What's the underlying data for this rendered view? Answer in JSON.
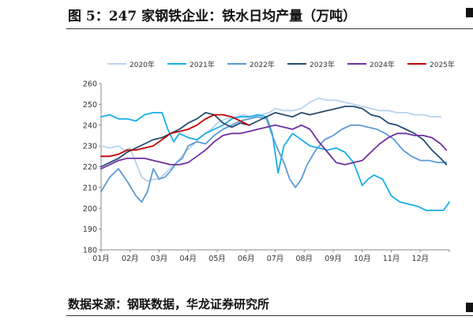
{
  "header": {
    "title": "图 5：247 家钢铁企业：铁水日均产量（万吨）"
  },
  "footer": {
    "source": "数据来源：钢联数据，华龙证券研究所"
  },
  "chart_data": {
    "type": "line",
    "title": "",
    "xlabel": "",
    "ylabel": "",
    "ylim": [
      180,
      260
    ],
    "yticks": [
      180,
      190,
      200,
      210,
      220,
      230,
      240,
      250,
      260
    ],
    "categories": [
      "01月",
      "02月",
      "03月",
      "04月",
      "05月",
      "06月",
      "07月",
      "08月",
      "09月",
      "10月",
      "11月",
      "12月"
    ],
    "grid": false,
    "legend_position": "top",
    "series": [
      {
        "name": "2020年",
        "color": "#b9d3ee",
        "x": [
          1,
          1.3,
          1.6,
          1.8,
          2.0,
          2.2,
          2.4,
          2.6,
          2.8,
          3.0,
          3.3,
          3.6,
          3.9,
          4.2,
          4.5,
          4.8,
          5.0,
          5.3,
          5.6,
          5.9,
          6.2,
          6.5,
          6.8,
          7.0,
          7.3,
          7.6,
          7.9,
          8.2,
          8.5,
          8.8,
          9.1,
          9.4,
          9.7,
          10.0,
          10.3,
          10.6,
          10.9,
          11.2,
          11.5,
          11.8,
          12.1,
          12.4,
          12.7
        ],
        "values": [
          230,
          229,
          230,
          228,
          229,
          222,
          215,
          213,
          214,
          214,
          218,
          222,
          227,
          231,
          235,
          238,
          241,
          243,
          244,
          245,
          244,
          245,
          246,
          248,
          247,
          247,
          248,
          251,
          253,
          252,
          252,
          251,
          250,
          249,
          248,
          247,
          247,
          246,
          246,
          245,
          245,
          244,
          244
        ]
      },
      {
        "name": "2021年",
        "color": "#19aee9",
        "x": [
          1,
          1.3,
          1.6,
          1.9,
          2.2,
          2.5,
          2.8,
          3.1,
          3.3,
          3.5,
          3.7,
          4.0,
          4.3,
          4.6,
          4.9,
          5.2,
          5.5,
          5.8,
          6.1,
          6.4,
          6.7,
          6.9,
          7.1,
          7.3,
          7.6,
          7.9,
          8.2,
          8.5,
          8.8,
          9.1,
          9.4,
          9.7,
          10.0,
          10.2,
          10.4,
          10.7,
          11.0,
          11.3,
          11.6,
          11.9,
          12.2,
          12.5,
          12.8,
          13.0
        ],
        "values": [
          244,
          245,
          243,
          243,
          242,
          245,
          246,
          246,
          238,
          232,
          236,
          234,
          233,
          236,
          238,
          240,
          243,
          244,
          244,
          245,
          244,
          236,
          217,
          230,
          236,
          233,
          230,
          229,
          228,
          229,
          227,
          222,
          211,
          214,
          216,
          214,
          206,
          203,
          202,
          201,
          199,
          199,
          199,
          203
        ]
      },
      {
        "name": "2022年",
        "color": "#5b9bd5",
        "x": [
          1,
          1.3,
          1.6,
          1.9,
          2.2,
          2.4,
          2.6,
          2.8,
          3.0,
          3.2,
          3.4,
          3.6,
          3.8,
          4.0,
          4.3,
          4.6,
          4.9,
          5.2,
          5.5,
          5.8,
          6.1,
          6.4,
          6.7,
          6.9,
          7.1,
          7.3,
          7.5,
          7.7,
          7.9,
          8.1,
          8.4,
          8.7,
          9.0,
          9.3,
          9.6,
          9.9,
          10.2,
          10.5,
          10.8,
          11.1,
          11.4,
          11.7,
          12.0,
          12.3,
          12.6,
          12.9
        ],
        "values": [
          208,
          215,
          219,
          213,
          206,
          203,
          208,
          219,
          214,
          215,
          218,
          222,
          224,
          230,
          232,
          231,
          235,
          238,
          240,
          242,
          243,
          244,
          243,
          235,
          228,
          222,
          214,
          210,
          214,
          221,
          228,
          233,
          235,
          238,
          240,
          240,
          239,
          238,
          236,
          233,
          228,
          225,
          223,
          223,
          222,
          222
        ]
      },
      {
        "name": "2023年",
        "color": "#264d6e",
        "x": [
          1,
          1.3,
          1.6,
          1.9,
          2.2,
          2.5,
          2.8,
          3.1,
          3.4,
          3.7,
          4.0,
          4.3,
          4.6,
          4.9,
          5.2,
          5.5,
          5.8,
          6.1,
          6.4,
          6.7,
          7.0,
          7.3,
          7.6,
          7.9,
          8.2,
          8.5,
          8.8,
          9.1,
          9.4,
          9.7,
          10.0,
          10.3,
          10.6,
          10.9,
          11.2,
          11.5,
          11.8,
          12.1,
          12.4,
          12.7,
          12.9
        ],
        "values": [
          220,
          222,
          224,
          227,
          229,
          231,
          233,
          234,
          236,
          238,
          241,
          243,
          246,
          245,
          241,
          239,
          241,
          240,
          242,
          244,
          246,
          245,
          244,
          246,
          245,
          246,
          247,
          248,
          249,
          249,
          248,
          245,
          244,
          241,
          240,
          238,
          236,
          233,
          228,
          224,
          221
        ]
      },
      {
        "name": "2024年",
        "color": "#7030a0",
        "x": [
          1,
          1.3,
          1.6,
          1.9,
          2.2,
          2.5,
          2.8,
          3.1,
          3.4,
          3.7,
          4.0,
          4.3,
          4.6,
          4.9,
          5.2,
          5.5,
          5.8,
          6.1,
          6.4,
          6.7,
          7.0,
          7.3,
          7.6,
          7.9,
          8.2,
          8.5,
          8.8,
          9.1,
          9.4,
          9.7,
          10.0,
          10.3,
          10.6,
          10.9,
          11.2,
          11.5,
          11.8,
          12.1,
          12.4,
          12.7,
          12.9
        ],
        "values": [
          219,
          221,
          223,
          224,
          224,
          224,
          223,
          222,
          221,
          221,
          222,
          225,
          228,
          232,
          235,
          236,
          236,
          237,
          238,
          239,
          240,
          239,
          238,
          240,
          238,
          232,
          227,
          222,
          221,
          222,
          223,
          227,
          231,
          234,
          236,
          236,
          235,
          235,
          234,
          231,
          228
        ]
      },
      {
        "name": "2025年",
        "color": "#c00000",
        "x": [
          1,
          1.3,
          1.6,
          1.9,
          2.2,
          2.5,
          2.8,
          3.1,
          3.4,
          3.7,
          4.0,
          4.3,
          4.6,
          4.9,
          5.2,
          5.5,
          5.8,
          6.1
        ],
        "values": [
          225,
          225,
          226,
          228,
          228,
          229,
          230,
          233,
          236,
          237,
          238,
          240,
          243,
          245,
          245,
          244,
          242,
          240
        ]
      }
    ]
  }
}
